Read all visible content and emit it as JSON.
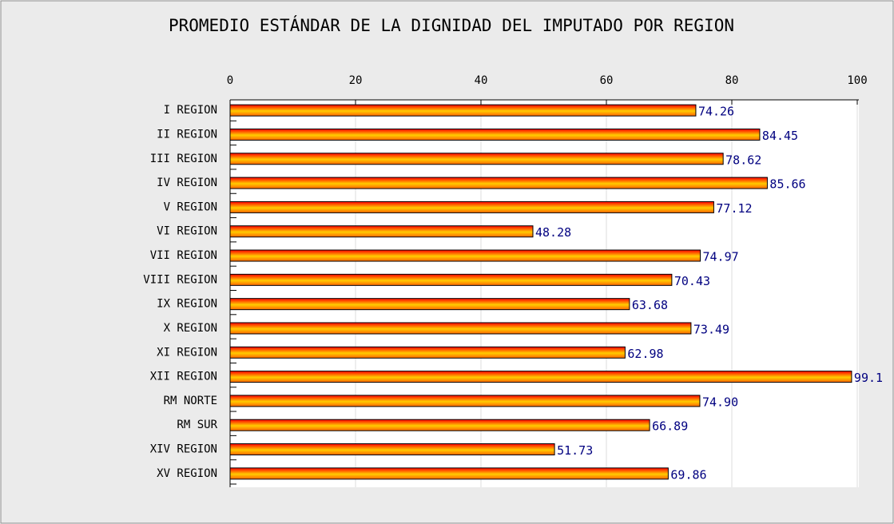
{
  "chart_data": {
    "type": "bar",
    "orientation": "horizontal",
    "title": "PROMEDIO ESTÁNDAR DE LA DIGNIDAD DEL IMPUTADO POR REGION",
    "categories": [
      "I REGION",
      "II REGION",
      "III REGION",
      "IV REGION",
      "V REGION",
      "VI REGION",
      "VII REGION",
      "VIII REGION",
      "IX REGION",
      "X REGION",
      "XI REGION",
      "XII REGION",
      "RM NORTE",
      "RM SUR",
      "XIV REGION",
      "XV REGION"
    ],
    "values": [
      74.26,
      84.45,
      78.62,
      85.66,
      77.12,
      48.28,
      74.97,
      70.43,
      63.68,
      73.49,
      62.98,
      99.1,
      74.9,
      66.89,
      51.73,
      69.86
    ],
    "value_labels": [
      "74.26",
      "84.45",
      "78.62",
      "85.66",
      "77.12",
      "48.28",
      "74.97",
      "70.43",
      "63.68",
      "73.49",
      "62.98",
      "99.1",
      "74.90",
      "66.89",
      "51.73",
      "69.86"
    ],
    "color": "#ff3300",
    "xlim": [
      0,
      100
    ],
    "xticks": [
      0,
      20,
      40,
      60,
      80,
      100
    ],
    "grid": true
  }
}
